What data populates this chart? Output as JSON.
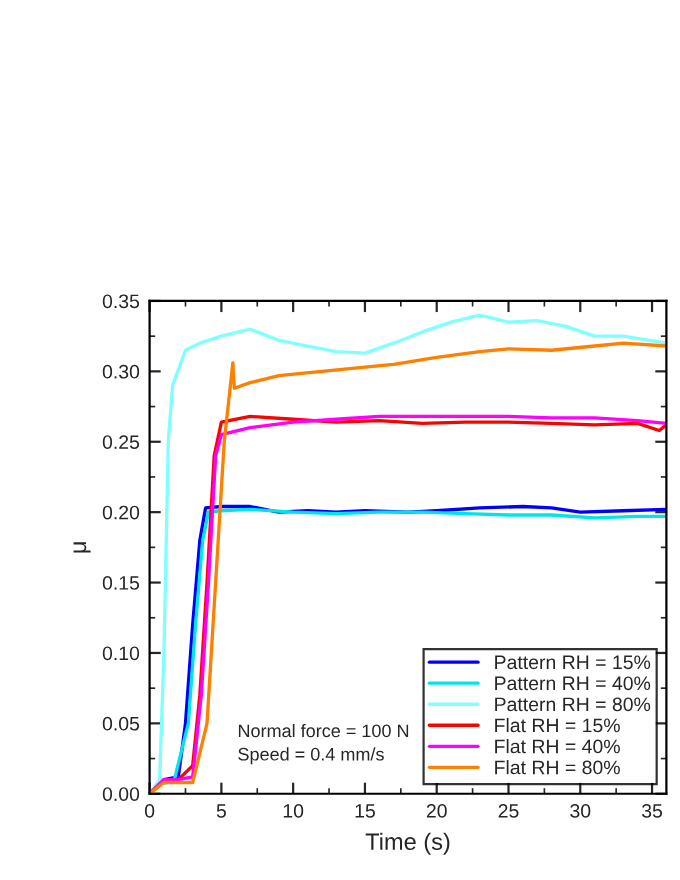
{
  "chart_data": {
    "type": "line",
    "xlabel": "Time (s)",
    "ylabel": "μ",
    "xlim": [
      0,
      36
    ],
    "xticks": [
      0,
      5,
      10,
      15,
      20,
      25,
      30,
      35
    ],
    "ylim": [
      0,
      0.35
    ],
    "yticks": [
      {
        "value": 0,
        "label": "0.00"
      },
      {
        "value": 0.05,
        "label": "0.05"
      },
      {
        "value": 0.1,
        "label": "0.10"
      },
      {
        "value": 0.15,
        "label": "0.15"
      },
      {
        "value": 0.2,
        "label": "0.20"
      },
      {
        "value": 0.25,
        "label": "0.25"
      },
      {
        "value": 0.3,
        "label": "0.30"
      },
      {
        "value": 0.35,
        "label": "0.35"
      }
    ],
    "grid": false,
    "legend": "bottom right",
    "annotations": [
      "Normal force = 100 N",
      "Speed = 0.4 mm/s"
    ],
    "series": [
      {
        "name": "Pattern RH = 15%",
        "color": "#0000ff",
        "x": [
          0,
          1,
          2,
          2.5,
          3,
          3.5,
          3.9,
          5,
          7,
          9,
          11,
          13,
          15,
          18,
          20,
          23,
          26,
          28,
          30,
          33,
          36
        ],
        "values": [
          0,
          0.01,
          0.012,
          0.05,
          0.12,
          0.18,
          0.203,
          0.204,
          0.204,
          0.2,
          0.201,
          0.2,
          0.201,
          0.2,
          0.201,
          0.203,
          0.204,
          0.203,
          0.2,
          0.201,
          0.202
        ]
      },
      {
        "name": "Pattern RH = 40%",
        "color": "#00e5e5",
        "x": [
          0,
          0.8,
          1.7,
          2.7,
          3.2,
          3.7,
          4.1,
          5,
          7,
          10,
          13,
          16,
          19,
          22,
          25,
          28,
          31,
          34,
          36
        ],
        "values": [
          0,
          0.007,
          0.009,
          0.05,
          0.12,
          0.18,
          0.2,
          0.201,
          0.202,
          0.2,
          0.199,
          0.2,
          0.2,
          0.199,
          0.198,
          0.198,
          0.196,
          0.197,
          0.197
        ]
      },
      {
        "name": "Pattern RH = 80%",
        "color": "#80ffff",
        "x": [
          0,
          0.7,
          1.0,
          1.3,
          1.6,
          2.5,
          3.5,
          5,
          7,
          9,
          11,
          13,
          15,
          17,
          19,
          21,
          23,
          25,
          27,
          29,
          31,
          33,
          36
        ],
        "values": [
          0,
          0.01,
          0.1,
          0.25,
          0.29,
          0.315,
          0.32,
          0.325,
          0.33,
          0.322,
          0.318,
          0.314,
          0.313,
          0.32,
          0.328,
          0.335,
          0.34,
          0.335,
          0.336,
          0.332,
          0.325,
          0.325,
          0.32
        ]
      },
      {
        "name": "Flat RH = 15%",
        "color": "#ff0000",
        "x": [
          0,
          1,
          2,
          3,
          3.5,
          4,
          4.5,
          5,
          7,
          10,
          13,
          16,
          19,
          22,
          25,
          28,
          31,
          34,
          35.5,
          36
        ],
        "values": [
          0,
          0.01,
          0.01,
          0.02,
          0.07,
          0.15,
          0.24,
          0.264,
          0.268,
          0.266,
          0.264,
          0.265,
          0.263,
          0.264,
          0.264,
          0.263,
          0.262,
          0.263,
          0.258,
          0.262
        ]
      },
      {
        "name": "Flat RH = 40%",
        "color": "#ff00ff",
        "x": [
          0,
          1,
          2,
          3,
          3.6,
          4.1,
          4.6,
          5,
          7,
          10,
          13,
          16,
          19,
          22,
          25,
          28,
          31,
          34,
          36
        ],
        "values": [
          0,
          0.01,
          0.01,
          0.012,
          0.07,
          0.15,
          0.24,
          0.255,
          0.26,
          0.264,
          0.266,
          0.268,
          0.268,
          0.268,
          0.268,
          0.267,
          0.267,
          0.265,
          0.263
        ]
      },
      {
        "name": "Flat RH = 80%",
        "color": "#ff8000",
        "x": [
          0,
          1,
          2,
          3,
          4,
          4.6,
          5.2,
          5.8,
          5.9,
          7,
          9,
          12,
          15,
          17,
          20,
          23,
          25,
          28,
          31,
          33,
          36
        ],
        "values": [
          0,
          0.008,
          0.008,
          0.008,
          0.05,
          0.15,
          0.25,
          0.306,
          0.288,
          0.292,
          0.297,
          0.3,
          0.303,
          0.305,
          0.31,
          0.314,
          0.316,
          0.315,
          0.318,
          0.32,
          0.318
        ]
      }
    ]
  }
}
